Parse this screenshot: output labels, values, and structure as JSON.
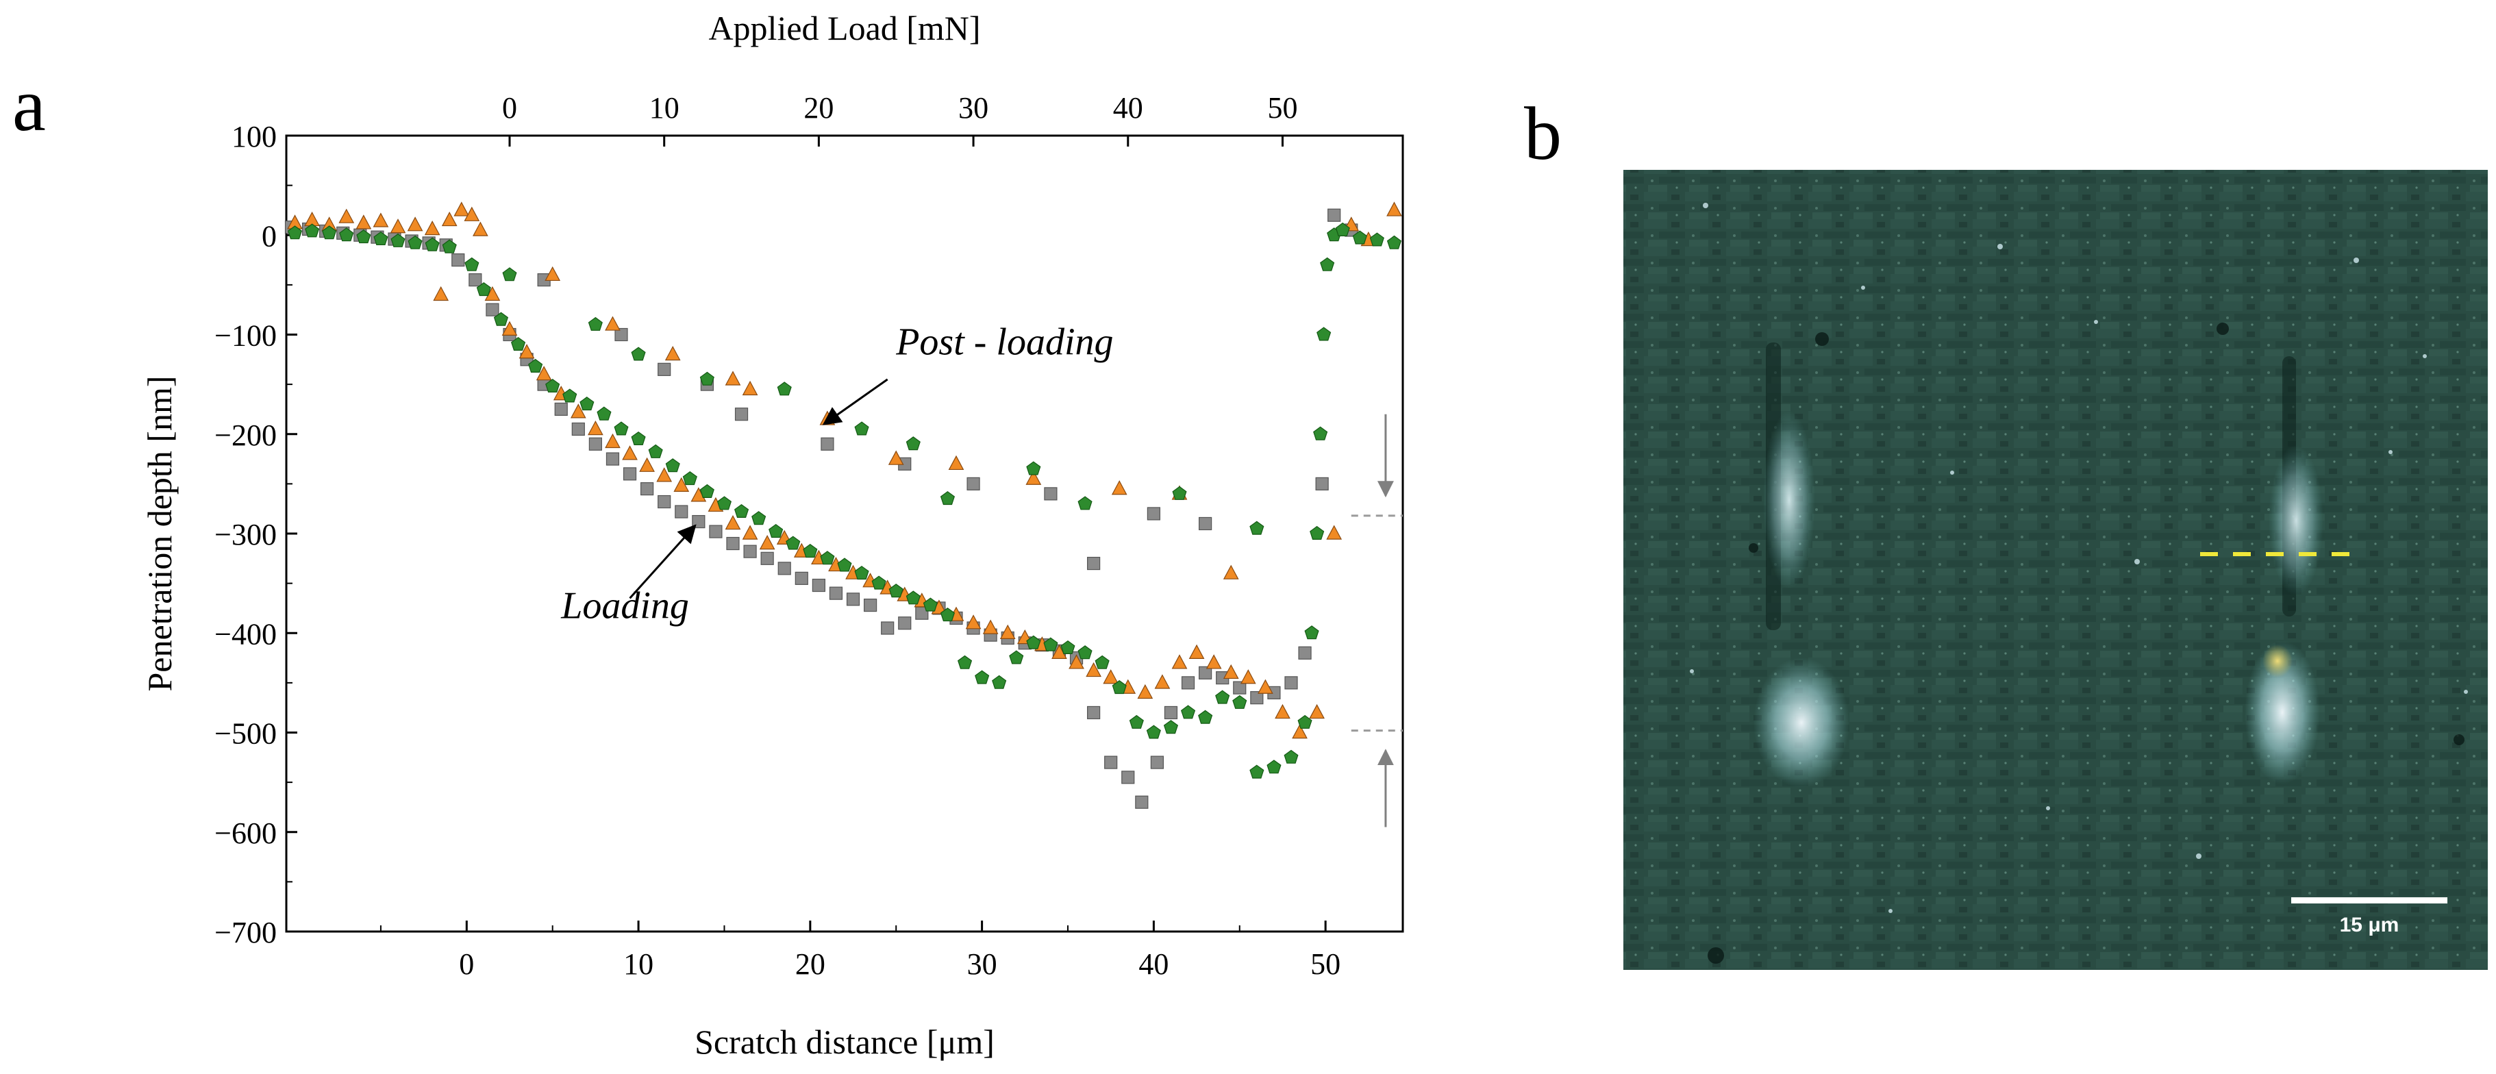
{
  "panels": {
    "a_label": "a",
    "b_label": "b"
  },
  "chart_data": {
    "type": "scatter",
    "title": "",
    "xlabel": "Scratch distance [μm]",
    "ylabel": "Penetration depth [nm]",
    "x2label": "Applied Load [mN]",
    "xlim": [
      -10.5,
      54.5
    ],
    "ylim": [
      -700,
      100
    ],
    "xticks": [
      0,
      10,
      20,
      30,
      40,
      50
    ],
    "yticks": [
      100,
      0,
      -100,
      -200,
      -300,
      -400,
      -500,
      -600,
      -700
    ],
    "x2ticks": [
      {
        "label": "0",
        "x": 2.5
      },
      {
        "label": "10",
        "x": 11.5
      },
      {
        "label": "20",
        "x": 20.5
      },
      {
        "label": "30",
        "x": 29.5
      },
      {
        "label": "40",
        "x": 38.5
      },
      {
        "label": "50",
        "x": 47.5
      }
    ],
    "annotations": [
      {
        "text": "Post - loading",
        "x": 25,
        "y": -120
      },
      {
        "text": "Loading",
        "x": 5.5,
        "y": -385
      }
    ],
    "reference_lines": [
      {
        "y": -282,
        "x_range": [
          51.5,
          54.5
        ]
      },
      {
        "y": -498,
        "x_range": [
          51.5,
          54.5
        ]
      }
    ],
    "depth_arrows": [
      {
        "x": 53.5,
        "from_y": -180,
        "to_y": -262
      },
      {
        "x": 53.5,
        "from_y": -595,
        "to_y": -518
      }
    ],
    "series": [
      {
        "name": "Series 1",
        "marker": "square",
        "color": "#8a8a8a",
        "points": [
          [
            -10.2,
            8
          ],
          [
            -9.2,
            6
          ],
          [
            -8.2,
            4
          ],
          [
            -7.2,
            2
          ],
          [
            -6.2,
            0
          ],
          [
            -5.2,
            -2
          ],
          [
            -4.2,
            -4
          ],
          [
            -3.2,
            -6
          ],
          [
            -2.2,
            -8
          ],
          [
            -1.2,
            -10
          ],
          [
            -0.5,
            -25
          ],
          [
            0.5,
            -45
          ],
          [
            1.5,
            -75
          ],
          [
            2.5,
            -100
          ],
          [
            3.5,
            -125
          ],
          [
            4.5,
            -150
          ],
          [
            5.5,
            -175
          ],
          [
            6.5,
            -195
          ],
          [
            7.5,
            -210
          ],
          [
            8.5,
            -225
          ],
          [
            9.5,
            -240
          ],
          [
            10.5,
            -255
          ],
          [
            11.5,
            -268
          ],
          [
            12.5,
            -278
          ],
          [
            13.5,
            -288
          ],
          [
            14.5,
            -298
          ],
          [
            15.5,
            -310
          ],
          [
            16.5,
            -318
          ],
          [
            17.5,
            -325
          ],
          [
            18.5,
            -335
          ],
          [
            19.5,
            -345
          ],
          [
            20.5,
            -352
          ],
          [
            21.5,
            -360
          ],
          [
            22.5,
            -366
          ],
          [
            23.5,
            -372
          ],
          [
            24.5,
            -395
          ],
          [
            25.5,
            -390
          ],
          [
            26.5,
            -380
          ],
          [
            27.5,
            -375
          ],
          [
            28.5,
            -385
          ],
          [
            29.5,
            -395
          ],
          [
            30.5,
            -402
          ],
          [
            31.5,
            -405
          ],
          [
            32.5,
            -410
          ],
          [
            33.5,
            -412
          ],
          [
            34.5,
            -418
          ],
          [
            35.5,
            -425
          ],
          [
            36.5,
            -480
          ],
          [
            37.5,
            -530
          ],
          [
            38.5,
            -545
          ],
          [
            39.3,
            -570
          ],
          [
            40.2,
            -530
          ],
          [
            41,
            -480
          ],
          [
            42,
            -450
          ],
          [
            43,
            -440
          ],
          [
            44,
            -445
          ],
          [
            45,
            -455
          ],
          [
            46,
            -465
          ],
          [
            47,
            -460
          ],
          [
            48,
            -450
          ],
          [
            48.8,
            -420
          ],
          [
            49.8,
            -250
          ],
          [
            50.5,
            20
          ],
          [
            51.5,
            5
          ],
          [
            4.5,
            -45
          ],
          [
            9,
            -100
          ],
          [
            11.5,
            -135
          ],
          [
            14,
            -150
          ],
          [
            16,
            -180
          ],
          [
            21,
            -210
          ],
          [
            25.5,
            -230
          ],
          [
            29.5,
            -250
          ],
          [
            34,
            -260
          ],
          [
            36.5,
            -330
          ],
          [
            40,
            -280
          ],
          [
            43,
            -290
          ]
        ]
      },
      {
        "name": "Series 2",
        "marker": "triangle",
        "color": "#f08a24",
        "points": [
          [
            -10,
            12
          ],
          [
            -9,
            15
          ],
          [
            -8,
            10
          ],
          [
            -7,
            18
          ],
          [
            -6,
            12
          ],
          [
            -5,
            14
          ],
          [
            -4,
            8
          ],
          [
            -3,
            10
          ],
          [
            -2,
            6
          ],
          [
            -1,
            15
          ],
          [
            -0.3,
            25
          ],
          [
            0.3,
            20
          ],
          [
            0.8,
            5
          ],
          [
            -1.5,
            -60
          ],
          [
            1.5,
            -60
          ],
          [
            2.5,
            -95
          ],
          [
            3.5,
            -118
          ],
          [
            4.5,
            -140
          ],
          [
            5.5,
            -160
          ],
          [
            6.5,
            -178
          ],
          [
            7.5,
            -195
          ],
          [
            8.5,
            -208
          ],
          [
            9.5,
            -220
          ],
          [
            10.5,
            -232
          ],
          [
            11.5,
            -242
          ],
          [
            12.5,
            -252
          ],
          [
            13.5,
            -262
          ],
          [
            14.5,
            -272
          ],
          [
            15.5,
            -290
          ],
          [
            16.5,
            -300
          ],
          [
            17.5,
            -310
          ],
          [
            18.5,
            -305
          ],
          [
            19.5,
            -318
          ],
          [
            20.5,
            -325
          ],
          [
            21.5,
            -332
          ],
          [
            22.5,
            -340
          ],
          [
            23.5,
            -348
          ],
          [
            24.5,
            -355
          ],
          [
            25.5,
            -362
          ],
          [
            26.5,
            -368
          ],
          [
            27.5,
            -375
          ],
          [
            28.5,
            -382
          ],
          [
            29.5,
            -390
          ],
          [
            30.5,
            -395
          ],
          [
            31.5,
            -400
          ],
          [
            32.5,
            -405
          ],
          [
            33.5,
            -412
          ],
          [
            34.5,
            -420
          ],
          [
            35.5,
            -430
          ],
          [
            36.5,
            -438
          ],
          [
            37.5,
            -445
          ],
          [
            38.5,
            -455
          ],
          [
            39.5,
            -460
          ],
          [
            40.5,
            -450
          ],
          [
            41.5,
            -430
          ],
          [
            42.5,
            -420
          ],
          [
            43.5,
            -430
          ],
          [
            44.5,
            -440
          ],
          [
            45.5,
            -445
          ],
          [
            46.5,
            -455
          ],
          [
            47.5,
            -480
          ],
          [
            48.5,
            -500
          ],
          [
            49.5,
            -480
          ],
          [
            50.5,
            -300
          ],
          [
            51.5,
            10
          ],
          [
            52.5,
            -5
          ],
          [
            54,
            25
          ],
          [
            5,
            -40
          ],
          [
            8.5,
            -90
          ],
          [
            12,
            -120
          ],
          [
            15.5,
            -145
          ],
          [
            16.5,
            -155
          ],
          [
            21,
            -185
          ],
          [
            25,
            -225
          ],
          [
            28.5,
            -230
          ],
          [
            33,
            -245
          ],
          [
            38,
            -255
          ],
          [
            41.5,
            -260
          ],
          [
            44.5,
            -340
          ]
        ]
      },
      {
        "name": "Series 3",
        "marker": "pentagon",
        "color": "#2e8b2e",
        "points": [
          [
            -10,
            2
          ],
          [
            -9,
            4
          ],
          [
            -8,
            2
          ],
          [
            -7,
            0
          ],
          [
            -6,
            -2
          ],
          [
            -5,
            -4
          ],
          [
            -4,
            -6
          ],
          [
            -3,
            -8
          ],
          [
            -2,
            -10
          ],
          [
            -1,
            -12
          ],
          [
            0.3,
            -30
          ],
          [
            1,
            -55
          ],
          [
            2,
            -85
          ],
          [
            3,
            -110
          ],
          [
            4,
            -132
          ],
          [
            5,
            -152
          ],
          [
            6,
            -162
          ],
          [
            7,
            -170
          ],
          [
            8,
            -180
          ],
          [
            9,
            -195
          ],
          [
            10,
            -205
          ],
          [
            11,
            -218
          ],
          [
            12,
            -232
          ],
          [
            13,
            -245
          ],
          [
            14,
            -258
          ],
          [
            15,
            -270
          ],
          [
            16,
            -278
          ],
          [
            17,
            -285
          ],
          [
            18,
            -298
          ],
          [
            19,
            -310
          ],
          [
            20,
            -318
          ],
          [
            21,
            -325
          ],
          [
            22,
            -332
          ],
          [
            23,
            -340
          ],
          [
            24,
            -350
          ],
          [
            25,
            -358
          ],
          [
            26,
            -365
          ],
          [
            27,
            -372
          ],
          [
            28,
            -382
          ],
          [
            29,
            -430
          ],
          [
            30,
            -445
          ],
          [
            31,
            -450
          ],
          [
            32,
            -425
          ],
          [
            33,
            -410
          ],
          [
            34,
            -412
          ],
          [
            35,
            -415
          ],
          [
            36,
            -420
          ],
          [
            37,
            -430
          ],
          [
            38,
            -455
          ],
          [
            39,
            -490
          ],
          [
            40,
            -500
          ],
          [
            41,
            -495
          ],
          [
            42,
            -480
          ],
          [
            43,
            -485
          ],
          [
            44,
            -465
          ],
          [
            45,
            -470
          ],
          [
            46,
            -540
          ],
          [
            47,
            -535
          ],
          [
            48,
            -525
          ],
          [
            48.8,
            -490
          ],
          [
            49.2,
            -400
          ],
          [
            49.5,
            -300
          ],
          [
            49.7,
            -200
          ],
          [
            49.9,
            -100
          ],
          [
            50.1,
            -30
          ],
          [
            50.5,
            0
          ],
          [
            51,
            5
          ],
          [
            52,
            -3
          ],
          [
            53,
            -5
          ],
          [
            54,
            -8
          ],
          [
            2.5,
            -40
          ],
          [
            7.5,
            -90
          ],
          [
            10,
            -120
          ],
          [
            14,
            -145
          ],
          [
            18.5,
            -155
          ],
          [
            23,
            -195
          ],
          [
            26,
            -210
          ],
          [
            28,
            -265
          ],
          [
            33,
            -235
          ],
          [
            36,
            -270
          ],
          [
            41.5,
            -260
          ],
          [
            46,
            -295
          ]
        ]
      }
    ]
  },
  "micrograph": {
    "scale_bar_label": "15 μm",
    "description": "optical micrograph with two scratch tracks and a yellow dashed profile line"
  }
}
